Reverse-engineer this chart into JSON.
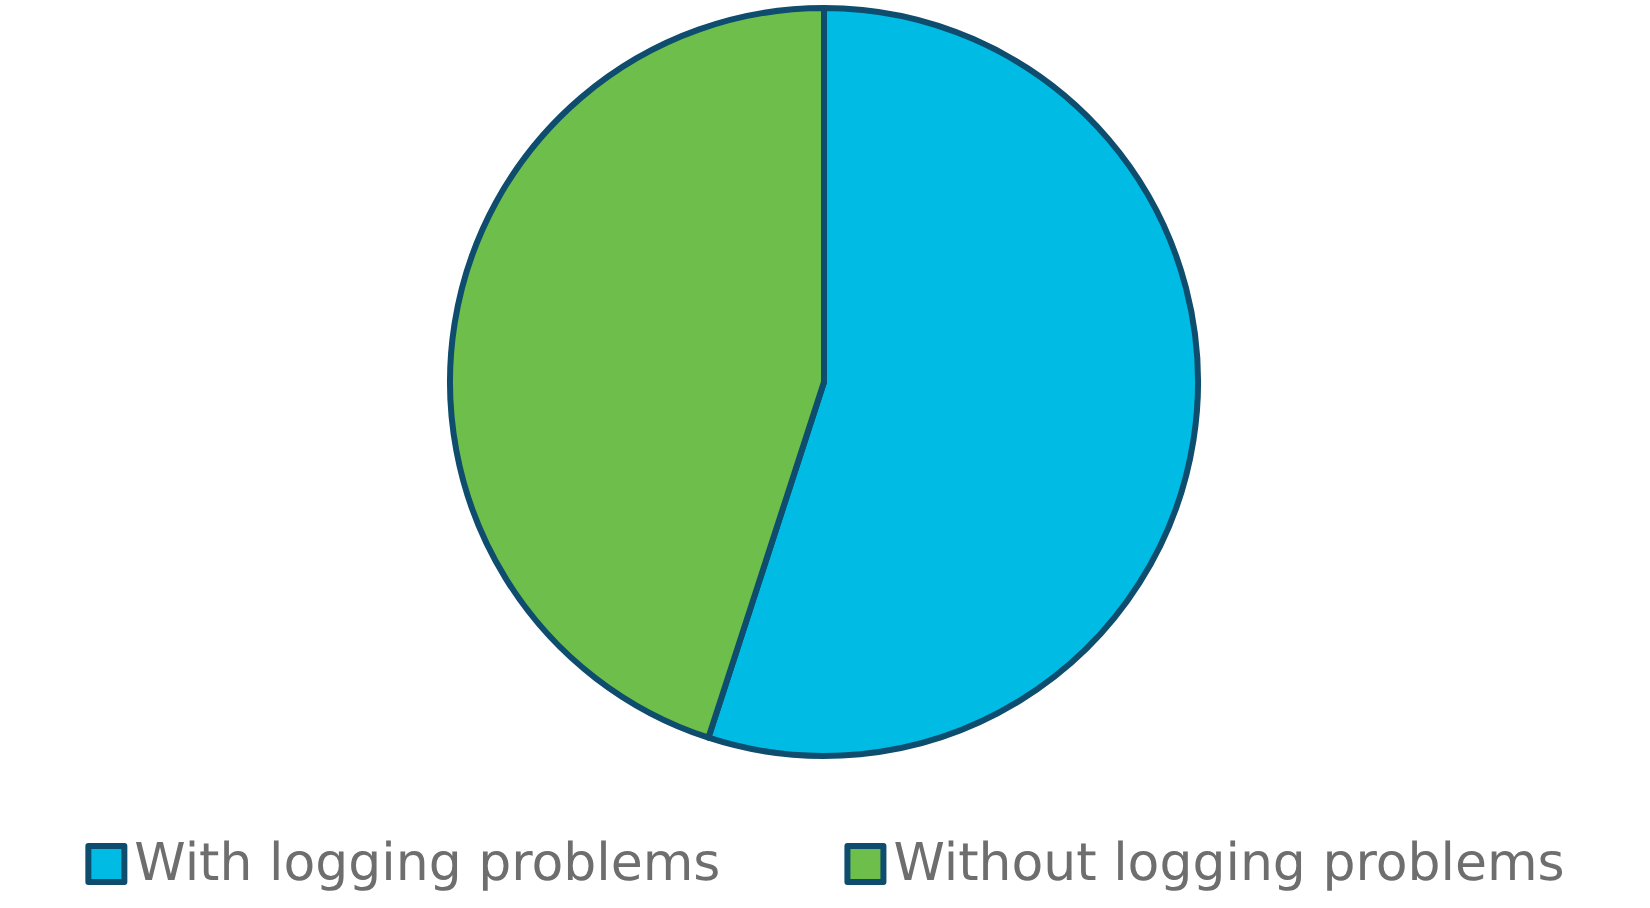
{
  "chart_data": {
    "type": "pie",
    "categories": [
      "With logging problems",
      "Without logging problems"
    ],
    "values": [
      55,
      45
    ],
    "colors": [
      "#00bce4",
      "#6dbe4b"
    ],
    "legend": "bottom"
  }
}
